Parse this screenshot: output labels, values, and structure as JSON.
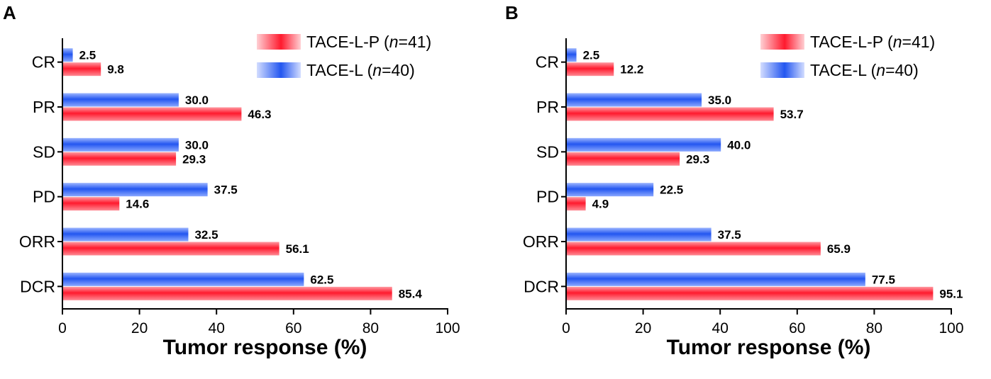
{
  "colors": {
    "red": "#ff2030",
    "blue": "#2a5cf0"
  },
  "chart_data": [
    {
      "type": "bar",
      "orientation": "horizontal",
      "panel": "A",
      "categories": [
        "CR",
        "PR",
        "SD",
        "PD",
        "ORR",
        "DCR"
      ],
      "series": [
        {
          "name": "TACE-L",
          "values": [
            2.5,
            30.0,
            30.0,
            37.5,
            32.5,
            62.5
          ],
          "labels": [
            "2.5",
            "30.0",
            "30.0",
            "37.5",
            "32.5",
            "62.5"
          ]
        },
        {
          "name": "TACE-L-P",
          "values": [
            9.8,
            46.3,
            29.3,
            14.6,
            56.1,
            85.4
          ],
          "labels": [
            "9.8",
            "46.3",
            "29.3",
            "14.6",
            "56.1",
            "85.4"
          ]
        }
      ],
      "xlabel": "Tumor response (%)",
      "xlim": [
        0,
        100
      ],
      "xticks": [
        "0",
        "20",
        "40",
        "60",
        "80",
        "100"
      ],
      "legend": [
        {
          "name": "TACE-L-P",
          "pre": "TACE-L-P (",
          "n": "n",
          "post": "=41)"
        },
        {
          "name": "TACE-L",
          "pre": "TACE-L (",
          "n": "n",
          "post": "=40)"
        }
      ],
      "legend_position": "top-right"
    },
    {
      "type": "bar",
      "orientation": "horizontal",
      "panel": "B",
      "categories": [
        "CR",
        "PR",
        "SD",
        "PD",
        "ORR",
        "DCR"
      ],
      "series": [
        {
          "name": "TACE-L",
          "values": [
            2.5,
            35.0,
            40.0,
            22.5,
            37.5,
            77.5
          ],
          "labels": [
            "2.5",
            "35.0",
            "40.0",
            "22.5",
            "37.5",
            "77.5"
          ]
        },
        {
          "name": "TACE-L-P",
          "values": [
            12.2,
            53.7,
            29.3,
            4.9,
            65.9,
            95.1
          ],
          "labels": [
            "12.2",
            "53.7",
            "29.3",
            "4.9",
            "65.9",
            "95.1"
          ]
        }
      ],
      "xlabel": "Tumor response (%)",
      "xlim": [
        0,
        100
      ],
      "xticks": [
        "0",
        "20",
        "40",
        "60",
        "80",
        "100"
      ],
      "legend": [
        {
          "name": "TACE-L-P",
          "pre": "TACE-L-P (",
          "n": "n",
          "post": "=41)"
        },
        {
          "name": "TACE-L",
          "pre": "TACE-L (",
          "n": "n",
          "post": "=40)"
        }
      ],
      "legend_position": "top-right"
    }
  ]
}
